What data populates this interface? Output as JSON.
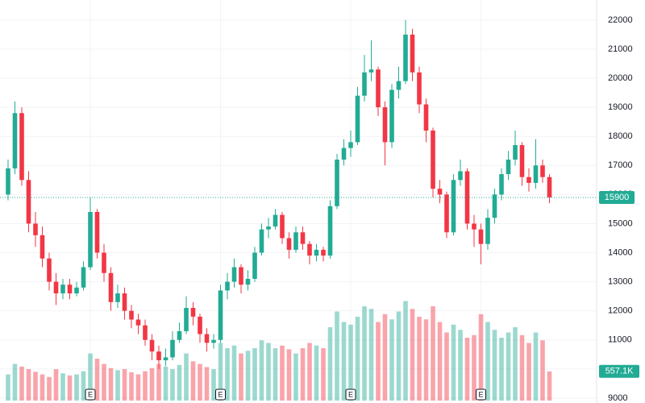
{
  "chart_data": {
    "type": "candlestick",
    "open": [
      16000,
      16900,
      18800,
      16500,
      15000,
      14600,
      13800,
      13000,
      12600,
      12900,
      12600,
      12800,
      13500,
      15400,
      14000,
      13300,
      12300,
      12600,
      12000,
      11700,
      11500,
      11000,
      10600,
      10300,
      10400,
      11000,
      11300,
      12100,
      11800,
      11200,
      10900,
      11000,
      12700,
      13000,
      13500,
      12900,
      13100,
      14000,
      14800,
      14900,
      15300,
      14500,
      14100,
      14700,
      14300,
      13900,
      14100,
      13900,
      15600,
      17200,
      17600,
      17800,
      19400,
      20200,
      20300,
      19000,
      17800,
      19600,
      19900,
      21500,
      20200,
      19100,
      18200,
      16200,
      16000,
      14700,
      16500,
      16800,
      15000,
      14800,
      14300,
      15200,
      16000,
      16700,
      17200,
      17700,
      16600,
      16400,
      17000,
      16600
    ],
    "high": [
      17200,
      19200,
      19000,
      16800,
      15400,
      14900,
      14000,
      13300,
      13100,
      13100,
      13000,
      13700,
      15900,
      15500,
      14300,
      13500,
      12900,
      12800,
      12200,
      11900,
      11700,
      11200,
      10800,
      10700,
      11300,
      11600,
      12500,
      12300,
      11900,
      11400,
      11200,
      12900,
      13300,
      13800,
      13600,
      13400,
      14200,
      15000,
      15200,
      15500,
      15400,
      14700,
      14900,
      14900,
      14400,
      14300,
      14200,
      15800,
      17400,
      17900,
      18200,
      19700,
      20800,
      21300,
      20400,
      19200,
      19800,
      20400,
      22000,
      21700,
      20400,
      19300,
      18300,
      16500,
      16100,
      16700,
      17200,
      16900,
      15300,
      15000,
      15500,
      16200,
      16900,
      17500,
      18200,
      17800,
      16900,
      17900,
      17200,
      16700
    ],
    "low": [
      15800,
      16700,
      16300,
      14700,
      14200,
      13500,
      12700,
      12200,
      12400,
      12400,
      12500,
      12700,
      13400,
      13800,
      13000,
      12000,
      12100,
      11700,
      11400,
      11200,
      10800,
      10300,
      10000,
      10100,
      10300,
      10900,
      11200,
      11500,
      10900,
      10600,
      10700,
      10900,
      12400,
      12800,
      12600,
      12700,
      13000,
      13900,
      14500,
      14800,
      14300,
      13800,
      14000,
      14100,
      13600,
      13700,
      13700,
      13800,
      15500,
      17000,
      17300,
      17700,
      19200,
      19900,
      18700,
      17000,
      17600,
      19300,
      19800,
      19900,
      18800,
      17800,
      15900,
      15700,
      14500,
      14600,
      16300,
      14800,
      14200,
      13600,
      14100,
      15000,
      15800,
      16500,
      17000,
      16300,
      16100,
      16200,
      16400,
      15700
    ],
    "close": [
      16900,
      18800,
      16500,
      15000,
      14600,
      13800,
      13000,
      12600,
      12900,
      12600,
      12800,
      13500,
      15400,
      14000,
      13300,
      12300,
      12600,
      12000,
      11700,
      11500,
      11000,
      10600,
      10300,
      10400,
      11000,
      11300,
      12100,
      11800,
      11200,
      10900,
      11000,
      12700,
      13000,
      13500,
      12900,
      13100,
      14000,
      14800,
      14900,
      15300,
      14500,
      14100,
      14700,
      14300,
      13900,
      14100,
      13900,
      15600,
      17200,
      17600,
      17800,
      19400,
      20200,
      20300,
      19000,
      17800,
      19600,
      19900,
      21500,
      20200,
      19100,
      18200,
      16200,
      16000,
      14700,
      16500,
      16800,
      15000,
      14800,
      14300,
      15200,
      16000,
      16700,
      17200,
      17700,
      16600,
      16400,
      17000,
      16600,
      15900
    ],
    "volume": [
      500,
      700,
      650,
      600,
      550,
      500,
      450,
      600,
      520,
      480,
      500,
      560,
      900,
      800,
      700,
      620,
      580,
      600,
      540,
      500,
      560,
      620,
      700,
      650,
      600,
      680,
      900,
      750,
      700,
      640,
      600,
      1100,
      1000,
      1050,
      900,
      950,
      1000,
      1150,
      1100,
      1000,
      1050,
      980,
      900,
      1000,
      1100,
      1050,
      1000,
      1400,
      1700,
      1500,
      1450,
      1600,
      1800,
      1750,
      1500,
      1650,
      1550,
      1700,
      1900,
      1750,
      1600,
      1550,
      1800,
      1500,
      1300,
      1450,
      1350,
      1200,
      1250,
      1650,
      1500,
      1350,
      1200,
      1300,
      1400,
      1250,
      1100,
      1300,
      1150,
      557.1
    ],
    "last_volume_label": "557.1K",
    "events": [
      {
        "index": 12,
        "label": "E"
      },
      {
        "index": 31,
        "label": "E"
      },
      {
        "index": 50,
        "label": "E"
      },
      {
        "index": 69,
        "label": "E"
      }
    ],
    "ylim": [
      8830,
      22690
    ],
    "yticks": [
      9000,
      10000,
      11000,
      12000,
      13000,
      14000,
      15000,
      16000,
      17000,
      18000,
      19000,
      20000,
      21000,
      22000
    ],
    "vlim": [
      0,
      2000
    ],
    "up_color": "#22ab94",
    "down_color": "#f23645",
    "grid": true
  }
}
